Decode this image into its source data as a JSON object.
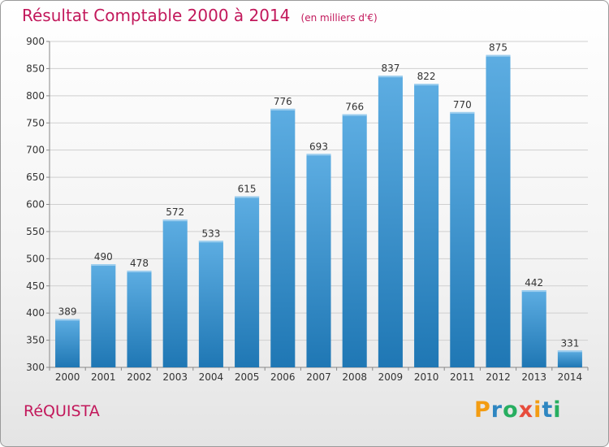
{
  "header": {
    "title": "Résultat Comptable 2000 à 2014",
    "subtitle": "(en milliers d'€)"
  },
  "footer": {
    "city": "RéQUISTA",
    "logo_text": "Proxiti"
  },
  "colors": {
    "title": "#c2185b",
    "bar_top": "#5dade2",
    "bar_bottom": "#1f77b4"
  },
  "chart_data": {
    "type": "bar",
    "title": "Résultat Comptable 2000 à 2014",
    "subtitle": "(en milliers d'€)",
    "xlabel": "",
    "ylabel": "",
    "categories": [
      "2000",
      "2001",
      "2002",
      "2003",
      "2004",
      "2005",
      "2006",
      "2007",
      "2008",
      "2009",
      "2010",
      "2011",
      "2012",
      "2013",
      "2014"
    ],
    "values": [
      389,
      490,
      478,
      572,
      533,
      615,
      776,
      693,
      766,
      837,
      822,
      770,
      875,
      442,
      331
    ],
    "ylim": [
      300,
      900
    ],
    "yticks": [
      300,
      350,
      400,
      450,
      500,
      550,
      600,
      650,
      700,
      750,
      800,
      850,
      900
    ],
    "grid": true,
    "legend": "none"
  }
}
